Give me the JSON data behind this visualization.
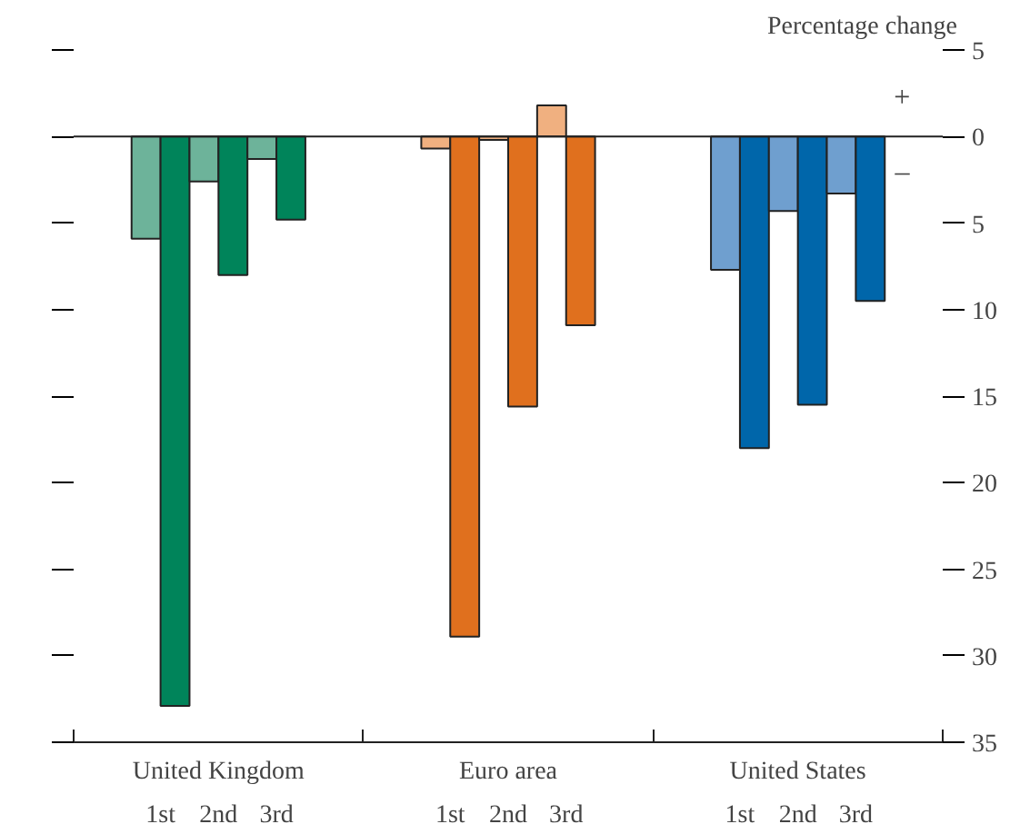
{
  "chart_data": {
    "type": "bar",
    "ylabel": "Percentage change",
    "categories": [
      "United Kingdom",
      "Euro area",
      "United States"
    ],
    "series": [
      {
        "colors": [
          "#6db39a",
          "#f0b080",
          "#6f9fcf"
        ],
        "values": [
          -5.9,
          -0.7,
          -7.7
        ]
      },
      {
        "colors": [
          "#00845a",
          "#e0701e",
          "#0066aa"
        ],
        "values": [
          -32.9,
          -28.9,
          -18.0
        ]
      },
      {
        "colors": [
          "#6db39a",
          "#f0b080",
          "#6f9fcf"
        ],
        "values": [
          -2.6,
          -0.2,
          -4.3
        ]
      },
      {
        "colors": [
          "#00845a",
          "#e0701e",
          "#0066aa"
        ],
        "values": [
          -8.0,
          -15.6,
          -15.5
        ]
      },
      {
        "colors": [
          "#6db39a",
          "#f0b080",
          "#6f9fcf"
        ],
        "values": [
          -1.3,
          1.8,
          -3.3
        ]
      },
      {
        "colors": [
          "#00845a",
          "#e0701e",
          "#0066aa"
        ],
        "values": [
          -4.8,
          -10.9,
          -9.5
        ]
      }
    ],
    "ylim": [
      -35,
      5
    ],
    "yticks": [
      5,
      0,
      {
        "value": -5,
        "label": "5"
      },
      {
        "value": -10,
        "label": "10"
      },
      {
        "value": -15,
        "label": "15"
      },
      {
        "value": -20,
        "label": "20"
      },
      {
        "value": -25,
        "label": "25"
      },
      {
        "value": -30,
        "label": "30"
      },
      {
        "value": -35,
        "label": "35"
      }
    ],
    "ref_lines": [
      {
        "axis": "y",
        "value": 0,
        "color": "#222222"
      }
    ],
    "annotations": [
      "1st",
      "2nd",
      "3rd",
      "1st",
      "2nd",
      "3rd",
      "1st",
      "2nd",
      "3rd",
      "+",
      "–"
    ],
    "grid": false
  }
}
